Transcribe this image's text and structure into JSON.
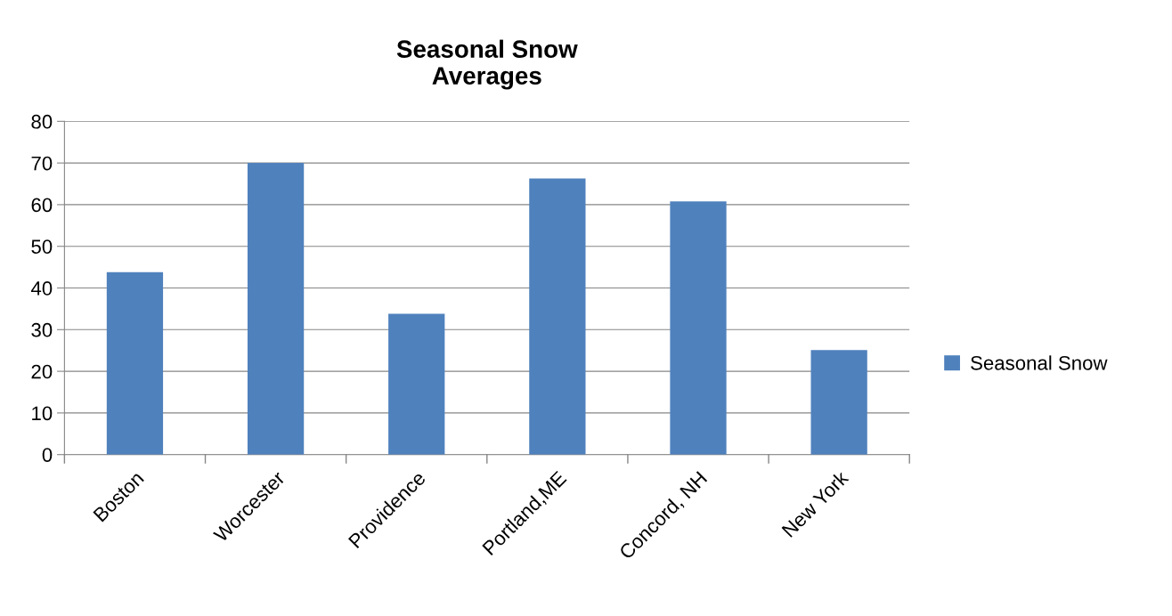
{
  "chart_data": {
    "type": "bar",
    "title": "Seasonal Snow\nAverages",
    "categories": [
      "Boston",
      "Worcester",
      "Providence",
      "Portland,ME",
      "Concord, NH",
      "New York"
    ],
    "series": [
      {
        "name": "Seasonal Snow",
        "color": "#4f81bd",
        "values": [
          43.8,
          70,
          33.8,
          66.3,
          60.8,
          25.1
        ]
      }
    ],
    "ylim": [
      0,
      80
    ],
    "yticks": [
      0,
      10,
      20,
      30,
      40,
      50,
      60,
      70,
      80
    ],
    "grid": "y",
    "legend": "right"
  }
}
